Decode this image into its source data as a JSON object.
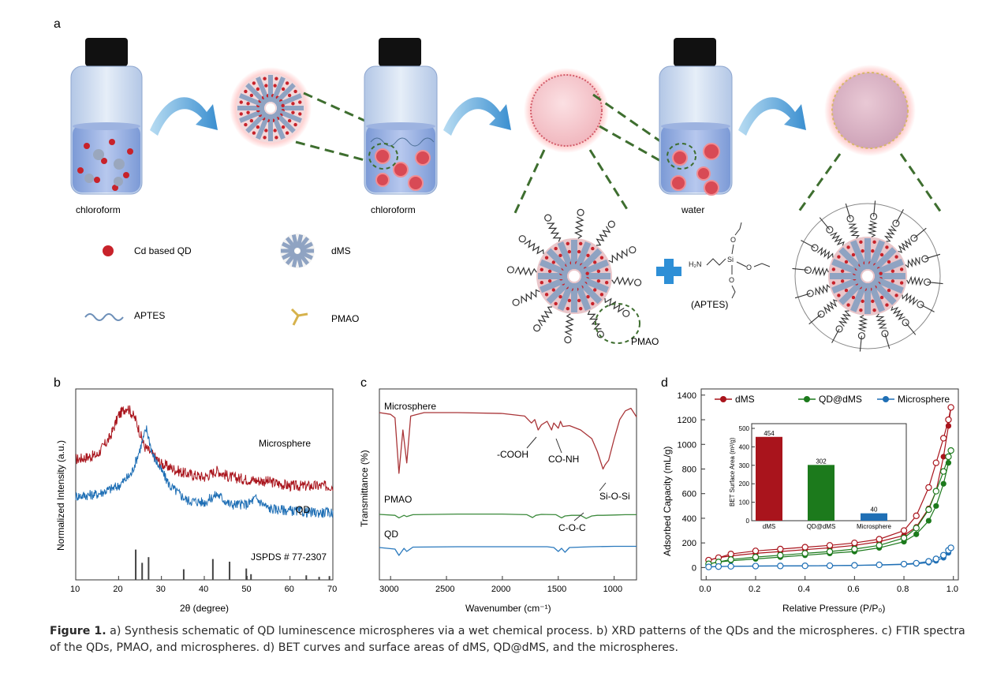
{
  "panel_a": {
    "letter": "a",
    "vial_labels": [
      "chloroform",
      "chloroform",
      "water"
    ],
    "legend": {
      "qd": "Cd based QD",
      "dms": "dMS",
      "aptes": "APTES",
      "pmao": "PMAO"
    },
    "pmao_callout": "PMAO",
    "aptes_label": "(APTES)",
    "chem": {
      "nh2": "H₂N",
      "si": "Si",
      "o1": "O",
      "o2": "O",
      "o3": "O"
    }
  },
  "panel_b": {
    "letter": "b",
    "microsphere": "Microsphere",
    "qd": "QD",
    "jspds": "JSPDS # 77-2307"
  },
  "panel_c": {
    "letter": "c",
    "microsphere": "Microsphere",
    "pmao": "PMAO",
    "qd": "QD",
    "cooh": "-COOH",
    "conh": "CO-NH",
    "sios": "Si-O-Si",
    "coc": "C-O-C"
  },
  "panel_d": {
    "letter": "d",
    "inset_title": "BET Surface Area (m²/g)"
  },
  "caption": {
    "lead": "Figure 1.",
    "text": " a) Synthesis schematic of QD luminescence microspheres via a wet chemical process. b) XRD patterns of the QDs and the microspheres. c) FTIR spectra of the QDs, PMAO, and microspheres. d) BET curves and surface areas of dMS, QD@dMS, and the microspheres."
  },
  "colors": {
    "red": "#a9141c",
    "green": "#1c7a1c",
    "blue": "#1f6fb5",
    "glass": "#c9d7ea",
    "liquid": "#6f8fd0"
  },
  "chart_data": [
    {
      "type": "line",
      "panel": "b",
      "xlabel": "2θ (degree)",
      "ylabel": "Normalized Intensity (a.u.)",
      "xlim": [
        10,
        70
      ],
      "xticks": [
        10,
        20,
        30,
        40,
        50,
        60,
        70
      ],
      "series": [
        {
          "name": "Microsphere",
          "x": [
            10,
            15,
            18,
            20,
            22,
            24,
            26,
            30,
            35,
            40,
            43,
            46,
            50,
            55,
            60,
            65,
            70
          ],
          "y": [
            0.42,
            0.44,
            0.52,
            0.62,
            0.66,
            0.6,
            0.48,
            0.4,
            0.36,
            0.34,
            0.37,
            0.34,
            0.33,
            0.32,
            0.3,
            0.3,
            0.3
          ]
        },
        {
          "name": "QD",
          "x": [
            10,
            15,
            20,
            23,
            25,
            26.5,
            28,
            32,
            36,
            40,
            43,
            46,
            50,
            52,
            55,
            60,
            65,
            70
          ],
          "y": [
            0.35,
            0.36,
            0.4,
            0.46,
            0.58,
            0.68,
            0.55,
            0.4,
            0.33,
            0.32,
            0.36,
            0.31,
            0.31,
            0.34,
            0.29,
            0.28,
            0.27,
            0.27
          ]
        }
      ],
      "reference_peaks": [
        {
          "x": 24.0,
          "h": 0.8
        },
        {
          "x": 25.5,
          "h": 0.45
        },
        {
          "x": 27.0,
          "h": 0.6
        },
        {
          "x": 35.2,
          "h": 0.28
        },
        {
          "x": 42.0,
          "h": 0.55
        },
        {
          "x": 45.9,
          "h": 0.48
        },
        {
          "x": 49.8,
          "h": 0.3
        },
        {
          "x": 50.9,
          "h": 0.15
        },
        {
          "x": 63.8,
          "h": 0.12
        },
        {
          "x": 66.8,
          "h": 0.08
        },
        {
          "x": 69.2,
          "h": 0.1
        }
      ]
    },
    {
      "type": "line",
      "panel": "c",
      "xlabel": "Wavenumber (cm⁻¹)",
      "ylabel": "Transmittance (%)",
      "xlim": [
        3100,
        800
      ],
      "xticks": [
        3000,
        2500,
        2000,
        1500,
        1000
      ],
      "series": [
        {
          "name": "Microsphere",
          "x": [
            3100,
            3000,
            2960,
            2925,
            2890,
            2855,
            2820,
            2700,
            2400,
            2000,
            1800,
            1740,
            1710,
            1680,
            1650,
            1600,
            1560,
            1540,
            1500,
            1480,
            1460,
            1400,
            1300,
            1200,
            1150,
            1100,
            1080,
            1050,
            1000,
            950,
            900,
            850,
            800
          ],
          "y": [
            0.9,
            0.88,
            0.84,
            0.2,
            0.7,
            0.32,
            0.86,
            0.9,
            0.9,
            0.89,
            0.86,
            0.78,
            0.82,
            0.7,
            0.76,
            0.8,
            0.7,
            0.78,
            0.72,
            0.8,
            0.74,
            0.75,
            0.7,
            0.6,
            0.45,
            0.25,
            0.3,
            0.35,
            0.6,
            0.82,
            0.92,
            0.95,
            0.85
          ]
        },
        {
          "name": "PMAO",
          "x": [
            3100,
            2960,
            2925,
            2880,
            2855,
            2800,
            2400,
            2000,
            1780,
            1730,
            1700,
            1650,
            1520,
            1470,
            1440,
            1380,
            1300,
            1250,
            1200,
            1150,
            1100,
            1000,
            900,
            800
          ],
          "y": [
            0.15,
            0.12,
            0.04,
            0.12,
            0.08,
            0.14,
            0.16,
            0.16,
            0.14,
            0.05,
            0.12,
            0.15,
            0.14,
            0.04,
            0.1,
            0.12,
            0.12,
            0.02,
            0.1,
            0.12,
            0.12,
            0.13,
            0.14,
            0.14
          ]
        },
        {
          "name": "QD",
          "x": [
            3100,
            2960,
            2925,
            2880,
            2855,
            2800,
            2400,
            2000,
            1600,
            1540,
            1500,
            1470,
            1440,
            1400,
            1200,
            1000,
            800
          ],
          "y": [
            -0.08,
            -0.12,
            -0.28,
            -0.1,
            -0.18,
            -0.07,
            -0.06,
            -0.06,
            -0.06,
            -0.08,
            -0.18,
            -0.1,
            -0.2,
            -0.08,
            -0.06,
            -0.05,
            -0.05
          ]
        }
      ]
    },
    {
      "type": "scatter",
      "panel": "d",
      "xlabel": "Relative Pressure (P/P₀)",
      "ylabel": "Adsorbed Capacity (mL/g)",
      "xlim": [
        0.0,
        1.0
      ],
      "ylim": [
        0,
        1400
      ],
      "xticks": [
        0.0,
        0.2,
        0.4,
        0.6,
        0.8,
        1.0
      ],
      "yticks": [
        0,
        200,
        400,
        600,
        800,
        1000,
        1200,
        1400
      ],
      "legend": "top",
      "series": [
        {
          "name": "dMS",
          "color": "#a9141c",
          "x": [
            0.01,
            0.05,
            0.1,
            0.2,
            0.3,
            0.4,
            0.5,
            0.6,
            0.7,
            0.8,
            0.85,
            0.9,
            0.93,
            0.96,
            0.98,
            0.99
          ],
          "ads": [
            60,
            80,
            95,
            115,
            130,
            145,
            160,
            180,
            210,
            260,
            330,
            480,
            620,
            900,
            1150,
            1300
          ],
          "des": [
            60,
            80,
            110,
            135,
            150,
            165,
            180,
            200,
            230,
            300,
            420,
            650,
            850,
            1050,
            1200,
            1300
          ]
        },
        {
          "name": "QD@dMS",
          "color": "#1c7a1c",
          "x": [
            0.01,
            0.05,
            0.1,
            0.2,
            0.3,
            0.4,
            0.5,
            0.6,
            0.7,
            0.8,
            0.85,
            0.9,
            0.93,
            0.96,
            0.98,
            0.99
          ],
          "ads": [
            30,
            45,
            55,
            70,
            85,
            100,
            115,
            130,
            160,
            210,
            270,
            380,
            500,
            680,
            850,
            950
          ],
          "des": [
            30,
            45,
            65,
            85,
            100,
            115,
            130,
            150,
            180,
            240,
            320,
            470,
            620,
            780,
            900,
            950
          ]
        },
        {
          "name": "Microsphere",
          "color": "#1f6fb5",
          "x": [
            0.01,
            0.05,
            0.1,
            0.2,
            0.3,
            0.4,
            0.5,
            0.6,
            0.7,
            0.8,
            0.85,
            0.9,
            0.93,
            0.96,
            0.98,
            0.99
          ],
          "ads": [
            5,
            8,
            10,
            12,
            13,
            14,
            15,
            17,
            20,
            25,
            30,
            40,
            55,
            80,
            120,
            160
          ],
          "des": [
            5,
            8,
            10,
            12,
            13,
            14,
            15,
            18,
            22,
            28,
            35,
            50,
            70,
            100,
            140,
            160
          ]
        }
      ],
      "inset": {
        "type": "bar",
        "title": "BET Surface Area (m²/g)",
        "categories": [
          "dMS",
          "QD@dMS",
          "Microsphere"
        ],
        "values": [
          454,
          302,
          40
        ],
        "colors": [
          "#a9141c",
          "#1c7a1c",
          "#1f6fb5"
        ],
        "ylim": [
          0,
          500
        ],
        "yticks": [
          0,
          100,
          200,
          300,
          400,
          500
        ]
      }
    }
  ]
}
